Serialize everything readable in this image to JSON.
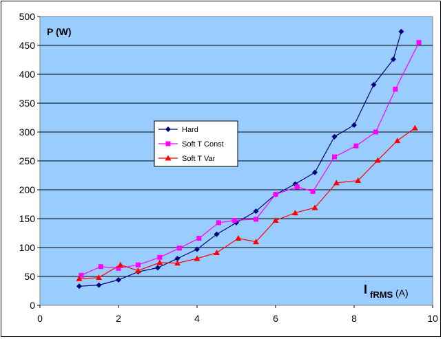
{
  "chart_data": {
    "type": "line",
    "ylabel": "P (W)",
    "xlabel_main": "I",
    "xlabel_sub": "fRMS",
    "xlabel_unit": "(A)",
    "xlim": [
      0,
      10
    ],
    "ylim": [
      0,
      500
    ],
    "x_ticks": [
      0,
      2,
      4,
      6,
      8,
      10
    ],
    "y_ticks": [
      0,
      50,
      100,
      150,
      200,
      250,
      300,
      350,
      400,
      450,
      500
    ],
    "grid": "horizontal",
    "legend_position": "center-left",
    "plot_background": "#99ccff",
    "series": [
      {
        "name": "Hard",
        "color": "#000080",
        "marker": "diamond",
        "points": [
          [
            1.0,
            33
          ],
          [
            1.5,
            35
          ],
          [
            2.0,
            44
          ],
          [
            2.5,
            58
          ],
          [
            3.0,
            65
          ],
          [
            3.5,
            81
          ],
          [
            4.0,
            97
          ],
          [
            4.5,
            123
          ],
          [
            5.0,
            143
          ],
          [
            5.5,
            163
          ],
          [
            6.0,
            192
          ],
          [
            6.5,
            210
          ],
          [
            7.0,
            230
          ],
          [
            7.5,
            292
          ],
          [
            8.0,
            312
          ],
          [
            8.5,
            382
          ],
          [
            9.0,
            426
          ],
          [
            9.2,
            474
          ]
        ]
      },
      {
        "name": "Soft T Const",
        "color": "#ff00ff",
        "marker": "square",
        "points": [
          [
            1.05,
            52
          ],
          [
            1.55,
            67
          ],
          [
            2.0,
            64
          ],
          [
            2.5,
            70
          ],
          [
            3.05,
            83
          ],
          [
            3.55,
            99
          ],
          [
            4.05,
            116
          ],
          [
            4.55,
            143
          ],
          [
            4.95,
            147
          ],
          [
            5.5,
            149
          ],
          [
            6.0,
            192
          ],
          [
            6.55,
            205
          ],
          [
            6.95,
            197
          ],
          [
            7.5,
            257
          ],
          [
            8.05,
            276
          ],
          [
            8.55,
            300
          ],
          [
            9.05,
            374
          ],
          [
            9.65,
            455
          ]
        ]
      },
      {
        "name": "Soft T Var",
        "color": "#ff0000",
        "marker": "triangle",
        "points": [
          [
            1.0,
            46
          ],
          [
            1.5,
            48
          ],
          [
            2.05,
            70
          ],
          [
            2.5,
            60
          ],
          [
            3.05,
            74
          ],
          [
            3.5,
            73
          ],
          [
            4.0,
            81
          ],
          [
            4.5,
            91
          ],
          [
            5.05,
            116
          ],
          [
            5.5,
            110
          ],
          [
            6.0,
            147
          ],
          [
            6.5,
            160
          ],
          [
            7.0,
            169
          ],
          [
            7.55,
            212
          ],
          [
            8.1,
            216
          ],
          [
            8.6,
            251
          ],
          [
            9.1,
            285
          ],
          [
            9.55,
            307
          ]
        ]
      }
    ]
  }
}
